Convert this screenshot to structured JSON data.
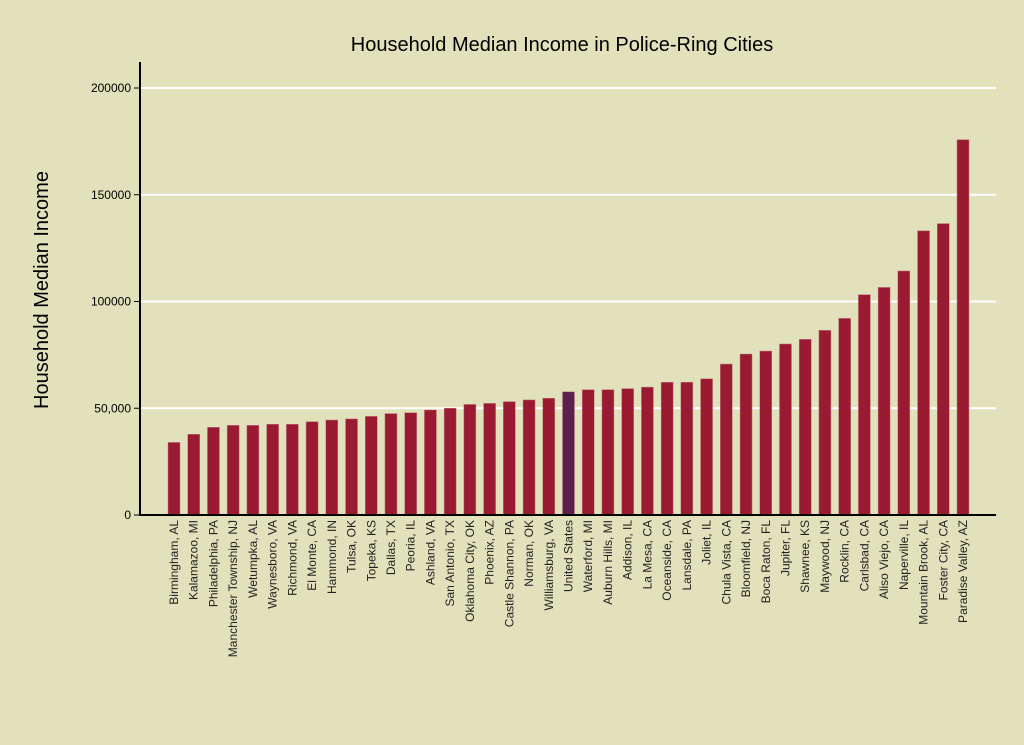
{
  "chart_data": {
    "type": "bar",
    "title": "Household Median Income in Police-Ring Cities",
    "xlabel": "",
    "ylabel": "Household Median Income",
    "ylim": [
      0,
      210000
    ],
    "yticks": [
      0,
      50000,
      100000,
      150000,
      200000
    ],
    "ytick_labels": [
      "0",
      "50,000",
      "100000",
      "150000",
      "200000"
    ],
    "grid": "horizontal",
    "colors": {
      "bar": "#9a1a32",
      "highlight": "#5c1f4f",
      "grid": "#ffffff",
      "background": "#e1e1bb"
    },
    "highlight_category": "United States",
    "categories": [
      "Birmingham, AL",
      "Kalamazoo, MI",
      "Philadelphia, PA",
      "Manchester Township, NJ",
      "Wetumpka, AL",
      "Waynesboro, VA",
      "Richmond, VA",
      "El Monte, CA",
      "Hammond, IN",
      "Tulsa, OK",
      "Topeka, KS",
      "Dallas, TX",
      "Peoria, IL",
      "Ashland, VA",
      "San Antonio, TX",
      "Oklahoma City, OK",
      "Phoenix, AZ",
      "Castle Shannon, PA",
      "Norman, OK",
      "Williamsburg, VA",
      "United States",
      "Waterford, MI",
      "Auburn Hills, MI",
      "Addison, IL",
      "La Mesa, CA",
      "Oceanside, CA",
      "Lansdale, PA",
      "Joliet, IL",
      "Chula Vista, CA",
      "Bloomfield, NJ",
      "Boca Raton, FL",
      "Jupiter, FL",
      "Shawnee, KS",
      "Maywood, NJ",
      "Rocklin, CA",
      "Carlsbad, CA",
      "Aliso Viejo, CA",
      "Naperville, IL",
      "Mountain Brook, AL",
      "Foster City, CA",
      "Paradise Valley, AZ"
    ],
    "values": [
      34000,
      37800,
      41100,
      42000,
      42000,
      42500,
      42500,
      43700,
      44500,
      45000,
      46200,
      47500,
      47900,
      49200,
      50000,
      51800,
      52300,
      53100,
      53900,
      54700,
      57700,
      58700,
      58700,
      59200,
      59900,
      62200,
      62200,
      63800,
      70700,
      75400,
      76800,
      80100,
      82300,
      86500,
      92100,
      103200,
      106600,
      114300,
      133100,
      136500,
      175800
    ]
  }
}
